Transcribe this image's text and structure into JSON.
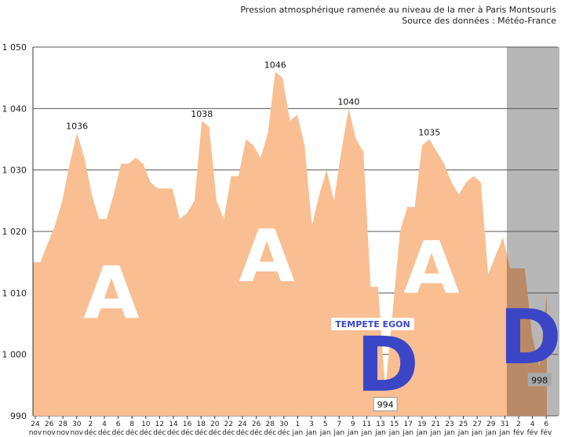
{
  "header": {
    "title": "Pression atmosphérique ramenée au niveau de la mer à Paris Montsouris",
    "subtitle": "Source des données : Météo-France"
  },
  "colors": {
    "area": "#f9be91",
    "shade": "#b7b7b7",
    "shade_area": "#b98a68",
    "grid": "#555555",
    "high_letter": "#ffffff",
    "low_letter": "#3b46c6",
    "storm_label": "#3b46c6"
  },
  "annotations": {
    "storm": "TEMPETE EGON",
    "highs": [
      "A",
      "A",
      "A"
    ],
    "lows": [
      "D",
      "D"
    ]
  },
  "chart_data": {
    "type": "area",
    "title": "Pression atmosphérique ramenée au niveau de la mer à Paris Montsouris",
    "subtitle": "Source des données : Météo-France",
    "xlabel": "",
    "ylabel": "",
    "ylim": [
      990,
      1050
    ],
    "yticks": [
      "990",
      "1 000",
      "1 010",
      "1 020",
      "1 030",
      "1 040",
      "1 050"
    ],
    "ytick_values": [
      990,
      1000,
      1010,
      1020,
      1030,
      1040,
      1050
    ],
    "grid": true,
    "shaded_period": [
      "31 jan",
      "6 fév"
    ],
    "x_labels": [
      {
        "day": "24",
        "month": "nov"
      },
      {
        "day": "26",
        "month": "nov"
      },
      {
        "day": "28",
        "month": "nov"
      },
      {
        "day": "30",
        "month": "nov"
      },
      {
        "day": "2",
        "month": "déc"
      },
      {
        "day": "4",
        "month": "déc"
      },
      {
        "day": "6",
        "month": "déc"
      },
      {
        "day": "8",
        "month": "déc"
      },
      {
        "day": "10",
        "month": "déc"
      },
      {
        "day": "12",
        "month": "déc"
      },
      {
        "day": "14",
        "month": "déc"
      },
      {
        "day": "16",
        "month": "déc"
      },
      {
        "day": "18",
        "month": "déc"
      },
      {
        "day": "20",
        "month": "déc"
      },
      {
        "day": "22",
        "month": "déc"
      },
      {
        "day": "24",
        "month": "déc"
      },
      {
        "day": "26",
        "month": "déc"
      },
      {
        "day": "28",
        "month": "déc"
      },
      {
        "day": "30",
        "month": "déc"
      },
      {
        "day": "1",
        "month": "jan"
      },
      {
        "day": "3",
        "month": "jan"
      },
      {
        "day": "5",
        "month": "jan"
      },
      {
        "day": "7",
        "month": "jan"
      },
      {
        "day": "9",
        "month": "jan"
      },
      {
        "day": "11",
        "month": "jan"
      },
      {
        "day": "13",
        "month": "jan"
      },
      {
        "day": "15",
        "month": "jan"
      },
      {
        "day": "17",
        "month": "jan"
      },
      {
        "day": "19",
        "month": "jan"
      },
      {
        "day": "21",
        "month": "jan"
      },
      {
        "day": "23",
        "month": "jan"
      },
      {
        "day": "25",
        "month": "jan"
      },
      {
        "day": "27",
        "month": "jan"
      },
      {
        "day": "29",
        "month": "jan"
      },
      {
        "day": "31",
        "month": "jan"
      },
      {
        "day": "2",
        "month": "fév"
      },
      {
        "day": "4",
        "month": "fév"
      },
      {
        "day": "6",
        "month": "fév"
      }
    ],
    "values": [
      1015,
      1015,
      1018,
      1021,
      1025,
      1031,
      1036,
      1032,
      1026,
      1022,
      1022,
      1026,
      1031,
      1031,
      1032,
      1031,
      1028,
      1027,
      1027,
      1027,
      1022,
      1023,
      1025,
      1038,
      1037,
      1025,
      1022,
      1029,
      1029,
      1035,
      1034,
      1032,
      1036,
      1046,
      1045,
      1038,
      1039,
      1034,
      1021,
      1026,
      1030,
      1025,
      1033,
      1040,
      1035,
      1033,
      1011,
      1011,
      994,
      1007,
      1020,
      1024,
      1024,
      1034,
      1035,
      1033,
      1031,
      1028,
      1026,
      1028,
      1029,
      1028,
      1013,
      1016,
      1019,
      1014,
      1014,
      1014,
      1003,
      998,
      1010
    ],
    "data_labels": [
      {
        "index": 6,
        "value": 1036,
        "text": "1036"
      },
      {
        "index": 23,
        "value": 1038,
        "text": "1038"
      },
      {
        "index": 33,
        "value": 1046,
        "text": "1046"
      },
      {
        "index": 43,
        "value": 1040,
        "text": "1040"
      },
      {
        "index": 54,
        "value": 1035,
        "text": "1035"
      },
      {
        "index": 48,
        "value": 994,
        "text": "994",
        "boxed": true
      },
      {
        "index": 69,
        "value": 998,
        "text": "998",
        "boxed": true,
        "dark": true
      }
    ]
  }
}
